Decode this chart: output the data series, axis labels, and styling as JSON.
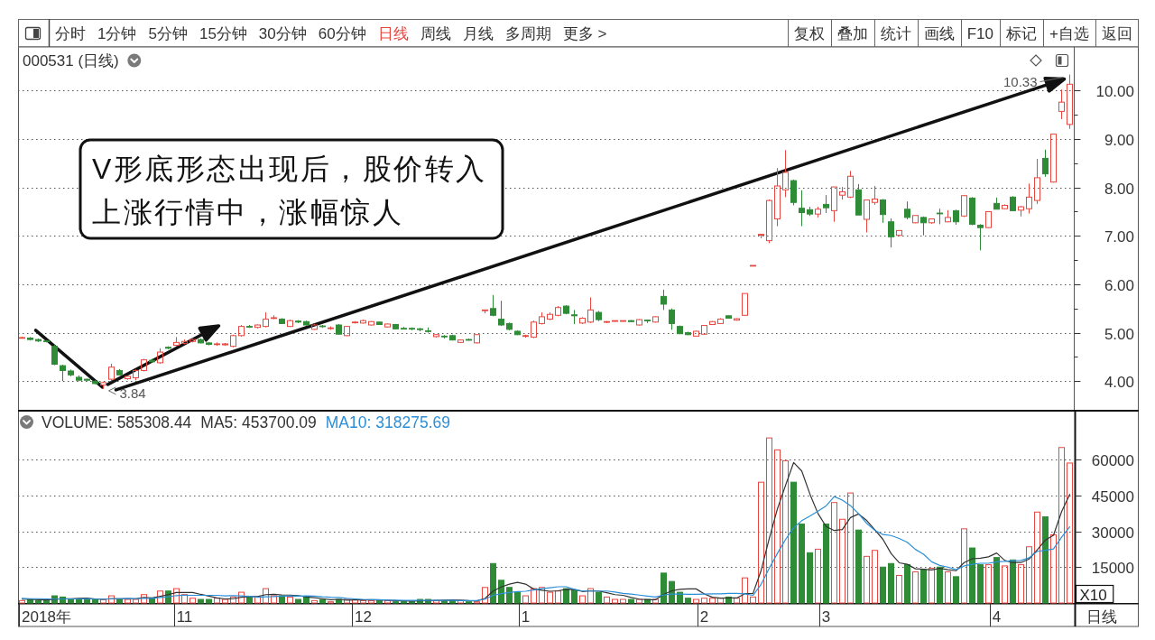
{
  "chart_data": [
    {
      "type": "other",
      "annotations": [
        "分时",
        "1分钟",
        "5分钟",
        "15分钟",
        "30分钟",
        "60分钟",
        "日线",
        "周线",
        "月线",
        "多周期",
        "更多 >"
      ],
      "colors": [
        "#333333",
        "#333333",
        "#333333",
        "#333333",
        "#333333",
        "#333333",
        "#e8473f",
        "#333333",
        "#333333",
        "#333333",
        "#333333"
      ]
    },
    {
      "type": "other",
      "annotations": [
        "复权",
        "叠加",
        "统计",
        "画线",
        "F10",
        "标记",
        "+自选",
        "返回"
      ]
    },
    {
      "type": "candlestick",
      "title": "000531 (日线)",
      "categories": [
        null,
        null,
        null,
        null,
        null,
        null,
        null,
        null,
        null,
        null,
        null,
        null,
        null,
        null,
        null,
        null,
        null,
        null,
        null,
        null,
        null,
        null,
        null,
        null,
        null,
        null,
        null,
        null,
        null,
        null,
        null,
        null,
        null,
        null,
        null,
        null,
        null,
        null,
        null,
        null,
        null,
        null,
        null,
        null,
        null,
        null,
        null,
        null,
        null,
        null,
        null,
        null,
        null,
        null,
        null,
        null,
        null,
        null,
        null,
        null,
        null,
        null,
        null,
        null,
        null,
        null,
        null,
        null,
        null,
        null,
        null,
        null,
        null,
        null,
        null,
        null,
        null,
        null,
        null,
        null,
        null,
        null,
        null,
        null,
        null,
        null,
        null,
        null,
        null,
        null,
        null,
        null,
        null,
        null,
        null,
        null,
        null,
        null,
        null,
        null,
        null,
        null,
        null,
        null,
        null,
        null,
        null,
        null,
        null,
        null,
        null,
        null,
        null,
        null,
        null,
        null,
        null,
        null,
        null,
        null,
        null,
        null,
        null,
        null,
        null,
        null,
        null,
        null,
        null,
        null
      ],
      "ohlc": [
        [
          4.89,
          4.92,
          4.88,
          4.9
        ],
        [
          4.89,
          4.91,
          4.84,
          4.86
        ],
        [
          4.86,
          4.88,
          4.81,
          4.83
        ],
        [
          4.83,
          4.85,
          4.8,
          4.82
        ],
        [
          4.72,
          4.75,
          4.33,
          4.35
        ],
        [
          4.32,
          4.34,
          4.0,
          4.22
        ],
        [
          4.21,
          4.24,
          4.1,
          4.13
        ],
        [
          4.08,
          4.12,
          4.0,
          4.02
        ],
        [
          4.04,
          4.05,
          4.0,
          4.02
        ],
        [
          4.0,
          4.02,
          3.94,
          3.95
        ],
        [
          3.92,
          3.99,
          3.84,
          3.97
        ],
        [
          4.04,
          4.36,
          4.0,
          4.29
        ],
        [
          4.22,
          4.25,
          4.12,
          4.13
        ],
        [
          4.05,
          4.12,
          4.03,
          4.1
        ],
        [
          4.07,
          4.24,
          4.02,
          4.22
        ],
        [
          4.22,
          4.46,
          4.2,
          4.44
        ],
        [
          4.43,
          4.46,
          4.38,
          4.4
        ],
        [
          4.38,
          4.68,
          4.36,
          4.6
        ],
        [
          4.7,
          4.72,
          4.66,
          4.68
        ],
        [
          4.74,
          4.91,
          4.72,
          4.8
        ],
        [
          4.78,
          4.86,
          4.76,
          4.82
        ],
        [
          4.82,
          4.88,
          4.8,
          4.86
        ],
        [
          4.86,
          4.88,
          4.78,
          4.79
        ],
        [
          4.79,
          4.81,
          4.74,
          4.76
        ],
        [
          4.76,
          4.8,
          4.73,
          4.77
        ],
        [
          4.75,
          4.79,
          4.73,
          4.77
        ],
        [
          4.72,
          4.96,
          4.7,
          4.94
        ],
        [
          4.94,
          5.16,
          4.92,
          5.13
        ],
        [
          5.13,
          5.16,
          5.1,
          5.12
        ],
        [
          5.11,
          5.17,
          5.09,
          5.16
        ],
        [
          5.13,
          5.42,
          5.11,
          5.28
        ],
        [
          5.3,
          5.36,
          5.28,
          5.31
        ],
        [
          5.28,
          5.3,
          5.18,
          5.19
        ],
        [
          5.13,
          5.27,
          5.12,
          5.25
        ],
        [
          5.24,
          5.26,
          5.2,
          5.22
        ],
        [
          5.23,
          5.25,
          5.15,
          5.16
        ],
        [
          5.07,
          5.18,
          5.06,
          5.16
        ],
        [
          5.14,
          5.16,
          5.1,
          5.13
        ],
        [
          5.09,
          5.13,
          5.06,
          5.1
        ],
        [
          5.16,
          5.18,
          4.96,
          4.97
        ],
        [
          4.94,
          5.14,
          4.93,
          5.13
        ],
        [
          5.21,
          5.24,
          5.19,
          5.22
        ],
        [
          5.2,
          5.27,
          5.19,
          5.25
        ],
        [
          5.16,
          5.24,
          5.15,
          5.23
        ],
        [
          5.22,
          5.23,
          5.16,
          5.17
        ],
        [
          5.12,
          5.19,
          5.11,
          5.18
        ],
        [
          5.17,
          5.18,
          5.07,
          5.08
        ],
        [
          5.09,
          5.12,
          5.07,
          5.08
        ],
        [
          5.09,
          5.11,
          5.05,
          5.08
        ],
        [
          5.08,
          5.1,
          5.03,
          5.07
        ],
        [
          5.04,
          5.11,
          5.0,
          5.03
        ],
        [
          4.92,
          4.97,
          4.9,
          4.96
        ],
        [
          4.93,
          4.95,
          4.88,
          4.92
        ],
        [
          4.94,
          4.96,
          4.84,
          4.85
        ],
        [
          4.8,
          4.86,
          4.79,
          4.85
        ],
        [
          4.86,
          4.88,
          4.84,
          4.85
        ],
        [
          4.79,
          4.97,
          4.78,
          4.96
        ],
        [
          5.46,
          5.47,
          5.4,
          5.47
        ],
        [
          5.5,
          5.78,
          5.34,
          5.36
        ],
        [
          5.28,
          5.66,
          5.14,
          5.16
        ],
        [
          5.19,
          5.21,
          5.05,
          5.07
        ],
        [
          5.03,
          5.05,
          4.95,
          4.96
        ],
        [
          4.94,
          4.96,
          4.9,
          4.94
        ],
        [
          4.91,
          5.25,
          4.89,
          5.22
        ],
        [
          5.19,
          5.42,
          5.17,
          5.33
        ],
        [
          5.28,
          5.42,
          5.26,
          5.38
        ],
        [
          5.36,
          5.55,
          5.34,
          5.52
        ],
        [
          5.55,
          5.57,
          5.38,
          5.4
        ],
        [
          5.37,
          5.47,
          5.18,
          5.35
        ],
        [
          5.2,
          5.32,
          5.18,
          5.3
        ],
        [
          5.22,
          5.73,
          5.2,
          5.47
        ],
        [
          5.42,
          5.45,
          5.24,
          5.27
        ],
        [
          5.22,
          5.24,
          5.2,
          5.23
        ],
        [
          5.24,
          5.25,
          5.23,
          5.25
        ],
        [
          5.24,
          5.25,
          5.23,
          5.25
        ],
        [
          5.25,
          5.26,
          5.22,
          5.23
        ],
        [
          5.16,
          5.28,
          5.15,
          5.27
        ],
        [
          5.26,
          5.27,
          5.2,
          5.25
        ],
        [
          5.22,
          5.34,
          5.21,
          5.33
        ],
        [
          5.75,
          5.89,
          5.47,
          5.59
        ],
        [
          5.47,
          5.5,
          5.06,
          5.19
        ],
        [
          5.13,
          5.15,
          4.97,
          4.98
        ],
        [
          5.0,
          5.02,
          4.95,
          4.96
        ],
        [
          4.93,
          5.04,
          4.92,
          5.03
        ],
        [
          4.97,
          5.16,
          4.96,
          5.15
        ],
        [
          5.17,
          5.24,
          5.16,
          5.23
        ],
        [
          5.19,
          5.3,
          5.18,
          5.28
        ],
        [
          5.35,
          5.36,
          5.29,
          5.3
        ],
        [
          5.26,
          5.3,
          5.25,
          5.29
        ],
        [
          5.36,
          5.81,
          5.35,
          5.81
        ],
        [
          6.39,
          6.39,
          6.39,
          6.39
        ],
        [
          7.03,
          7.03,
          6.95,
          7.03
        ],
        [
          6.9,
          7.75,
          6.85,
          7.73
        ],
        [
          7.35,
          8.4,
          7.2,
          8.03
        ],
        [
          7.95,
          8.77,
          7.8,
          8.31
        ],
        [
          8.14,
          8.16,
          7.63,
          7.69
        ],
        [
          7.57,
          7.94,
          7.2,
          7.48
        ],
        [
          7.54,
          7.6,
          7.41,
          7.45
        ],
        [
          7.45,
          7.6,
          7.38,
          7.55
        ],
        [
          7.65,
          7.84,
          7.47,
          7.58
        ],
        [
          7.52,
          8.01,
          7.29,
          8.01
        ],
        [
          7.84,
          8.01,
          7.75,
          7.91
        ],
        [
          7.8,
          8.34,
          7.78,
          8.23
        ],
        [
          7.95,
          8.07,
          7.43,
          7.43
        ],
        [
          7.34,
          7.74,
          7.07,
          7.74
        ],
        [
          7.69,
          8.03,
          7.64,
          7.76
        ],
        [
          7.74,
          7.76,
          7.27,
          7.44
        ],
        [
          7.29,
          7.36,
          6.76,
          6.98
        ],
        [
          7.01,
          7.11,
          7.0,
          7.11
        ],
        [
          7.55,
          7.71,
          7.34,
          7.38
        ],
        [
          7.27,
          7.42,
          7.26,
          7.42
        ],
        [
          7.38,
          7.4,
          7.01,
          7.27
        ],
        [
          7.27,
          7.36,
          7.25,
          7.35
        ],
        [
          7.47,
          7.56,
          7.24,
          7.46
        ],
        [
          7.29,
          7.53,
          7.28,
          7.38
        ],
        [
          7.52,
          7.54,
          7.23,
          7.29
        ],
        [
          7.41,
          7.84,
          7.39,
          7.83
        ],
        [
          7.78,
          7.8,
          7.22,
          7.24
        ],
        [
          7.22,
          7.24,
          6.7,
          7.17
        ],
        [
          7.17,
          7.5,
          7.16,
          7.5
        ],
        [
          7.67,
          7.79,
          7.55,
          7.55
        ],
        [
          7.56,
          7.65,
          7.55,
          7.63
        ],
        [
          7.8,
          7.82,
          7.52,
          7.52
        ],
        [
          7.53,
          7.62,
          7.4,
          7.6
        ],
        [
          7.56,
          8.08,
          7.46,
          7.8
        ],
        [
          7.73,
          8.59,
          7.66,
          8.2
        ],
        [
          8.6,
          8.78,
          8.22,
          8.28
        ],
        [
          8.11,
          9.1,
          8.1,
          9.1
        ],
        [
          9.57,
          10.02,
          9.41,
          9.76
        ],
        [
          9.3,
          10.33,
          9.21,
          10.13
        ]
      ],
      "colors": [
        "#e8473f",
        "#2e8b36",
        "#2e8b36",
        "#2e8b36",
        "#2e8b36",
        "#2e8b36",
        "#2e8b36",
        "#2e8b36",
        "#2e8b36",
        "#2e8b36",
        "#e8473f",
        "#e8473f",
        "#2e8b36",
        "#e8473f",
        "#e8473f",
        "#e8473f",
        "#2e8b36",
        "#e8473f",
        "#2e8b36",
        "#e8473f",
        "#e8473f",
        "#e8473f",
        "#2e8b36",
        "#2e8b36",
        "#e8473f",
        "#e8473f",
        "#e8473f",
        "#e8473f",
        "#2e8b36",
        "#e8473f",
        "#e8473f",
        "#e8473f",
        "#2e8b36",
        "#e8473f",
        "#2e8b36",
        "#2e8b36",
        "#e8473f",
        "#2e8b36",
        "#e8473f",
        "#2e8b36",
        "#e8473f",
        "#e8473f",
        "#e8473f",
        "#e8473f",
        "#2e8b36",
        "#e8473f",
        "#2e8b36",
        "#2e8b36",
        "#2e8b36",
        "#2e8b36",
        "#2e8b36",
        "#e8473f",
        "#2e8b36",
        "#2e8b36",
        "#e8473f",
        "#2e8b36",
        "#e8473f",
        "#e8473f",
        "#2e8b36",
        "#2e8b36",
        "#2e8b36",
        "#2e8b36",
        "#e8473f",
        "#e8473f",
        "#e8473f",
        "#e8473f",
        "#e8473f",
        "#2e8b36",
        "#2e8b36",
        "#e8473f",
        "#e8473f",
        "#2e8b36",
        "#e8473f",
        "#e8473f",
        "#e8473f",
        "#2e8b36",
        "#e8473f",
        "#2e8b36",
        "#e8473f",
        "#2e8b36",
        "#2e8b36",
        "#2e8b36",
        "#2e8b36",
        "#e8473f",
        "#e8473f",
        "#e8473f",
        "#e8473f",
        "#2e8b36",
        "#e8473f",
        "#e8473f",
        "#e8473f",
        "#e8473f",
        "#e8473f",
        "#e8473f",
        "#e8473f",
        "#2e8b36",
        "#2e8b36",
        "#2e8b36",
        "#e8473f",
        "#2e8b36",
        "#e8473f",
        "#e8473f",
        "#e8473f",
        "#2e8b36",
        "#e8473f",
        "#e8473f",
        "#2e8b36",
        "#2e8b36",
        "#e8473f",
        "#2e8b36",
        "#e8473f",
        "#2e8b36",
        "#e8473f",
        "#2e8b36",
        "#e8473f",
        "#2e8b36",
        "#e8473f",
        "#2e8b36",
        "#2e8b36",
        "#e8473f",
        "#2e8b36",
        "#e8473f",
        "#2e8b36",
        "#e8473f",
        "#e8473f",
        "#e8473f",
        "#2e8b36",
        "#e8473f",
        "#e8473f",
        "#e8473f"
      ],
      "ylim": [
        3.39,
        10.9
      ],
      "yticks": [
        {
          "value": 4,
          "label": "4.00"
        },
        {
          "value": 4.5,
          "label": null
        },
        {
          "value": 5,
          "label": "5.00"
        },
        {
          "value": 5.5,
          "label": null
        },
        {
          "value": 6,
          "label": "6.00"
        },
        {
          "value": 6.5,
          "label": null
        },
        {
          "value": 7,
          "label": "7.00"
        },
        {
          "value": 7.5,
          "label": null
        },
        {
          "value": 8,
          "label": "8.00"
        },
        {
          "value": 8.5,
          "label": null
        },
        {
          "value": 9,
          "label": "9.00"
        },
        {
          "value": 9.5,
          "label": null
        },
        {
          "value": 10,
          "label": "10.00"
        }
      ],
      "grid": "y",
      "tick_labels": "y",
      "annotations": [
        "V形底形态出现后，股价转入上涨行情中，涨幅惊人",
        "3.84",
        "10.33"
      ]
    },
    {
      "type": "bar",
      "title": "VOLUME: 585308.44",
      "categories": [
        null,
        null,
        null,
        "2018年",
        null,
        null,
        null,
        null,
        null,
        null,
        null,
        null,
        null,
        null,
        null,
        null,
        null,
        null,
        null,
        null,
        "11",
        null,
        null,
        null,
        null,
        null,
        null,
        null,
        null,
        null,
        null,
        null,
        null,
        null,
        null,
        null,
        null,
        null,
        null,
        null,
        null,
        null,
        "12",
        null,
        null,
        null,
        null,
        null,
        null,
        null,
        null,
        null,
        null,
        null,
        null,
        null,
        null,
        null,
        null,
        null,
        null,
        null,
        "1",
        null,
        null,
        null,
        null,
        null,
        null,
        null,
        null,
        null,
        null,
        null,
        null,
        null,
        null,
        null,
        null,
        null,
        null,
        null,
        null,
        null,
        "2",
        null,
        null,
        null,
        null,
        null,
        null,
        null,
        null,
        null,
        null,
        null,
        null,
        null,
        null,
        "3",
        null,
        null,
        null,
        null,
        null,
        null,
        null,
        null,
        null,
        null,
        null,
        null,
        null,
        null,
        null,
        null,
        null,
        null,
        null,
        null,
        "4",
        null,
        null,
        null,
        null,
        null,
        null,
        null,
        null,
        null
      ],
      "series": [
        {
          "type": "bar",
          "values": [
            1000,
            1500,
            1000,
            1000,
            3000,
            2500,
            1500,
            1500,
            1500,
            1500,
            1500,
            3000,
            1500,
            1500,
            1500,
            3500,
            2000,
            5000,
            5000,
            6000,
            3500,
            2000,
            1500,
            1500,
            2000,
            1500,
            2500,
            4500,
            2500,
            2500,
            6000,
            3000,
            3000,
            2500,
            1500,
            2500,
            1000,
            1500,
            500,
            1500,
            1500,
            1500,
            1000,
            1000,
            1000,
            1000,
            500,
            500,
            500,
            1500,
            1500,
            1000,
            1000,
            1000,
            1000,
            500,
            500,
            6500,
            16500,
            9500,
            6500,
            4500,
            3000,
            6000,
            6500,
            4500,
            5000,
            6000,
            5500,
            3000,
            6000,
            4500,
            2500,
            1500,
            1500,
            1500,
            1500,
            1500,
            1500,
            12500,
            9000,
            4500,
            2000,
            1500,
            2000,
            2000,
            2000,
            2500,
            2000,
            10500,
            2500,
            50500,
            69000,
            64000,
            59500,
            50500,
            33000,
            21000,
            22500,
            33000,
            42000,
            35000,
            46000,
            30500,
            19500,
            22000,
            15000,
            16500,
            11500,
            16000,
            13000,
            14000,
            14500,
            15000,
            13000,
            11000,
            31000,
            23000,
            16000,
            16000,
            19000,
            15500,
            18000,
            16000,
            23500,
            38000,
            36000,
            28500,
            65000,
            58500
          ],
          "colors": [
            "#e8473f",
            "#2e8b36",
            "#2e8b36",
            "#2e8b36",
            "#2e8b36",
            "#2e8b36",
            "#2e8b36",
            "#2e8b36",
            "#2e8b36",
            "#2e8b36",
            "#e8473f",
            "#e8473f",
            "#2e8b36",
            "#e8473f",
            "#e8473f",
            "#e8473f",
            "#2e8b36",
            "#e8473f",
            "#2e8b36",
            "#e8473f",
            "#e8473f",
            "#e8473f",
            "#2e8b36",
            "#2e8b36",
            "#e8473f",
            "#e8473f",
            "#e8473f",
            "#e8473f",
            "#2e8b36",
            "#e8473f",
            "#e8473f",
            "#e8473f",
            "#2e8b36",
            "#e8473f",
            "#2e8b36",
            "#2e8b36",
            "#e8473f",
            "#2e8b36",
            "#e8473f",
            "#2e8b36",
            "#e8473f",
            "#e8473f",
            "#e8473f",
            "#e8473f",
            "#2e8b36",
            "#e8473f",
            "#2e8b36",
            "#2e8b36",
            "#2e8b36",
            "#2e8b36",
            "#2e8b36",
            "#e8473f",
            "#2e8b36",
            "#2e8b36",
            "#e8473f",
            "#2e8b36",
            "#e8473f",
            "#e8473f",
            "#2e8b36",
            "#2e8b36",
            "#2e8b36",
            "#2e8b36",
            "#e8473f",
            "#e8473f",
            "#e8473f",
            "#e8473f",
            "#e8473f",
            "#2e8b36",
            "#2e8b36",
            "#e8473f",
            "#e8473f",
            "#2e8b36",
            "#e8473f",
            "#e8473f",
            "#e8473f",
            "#2e8b36",
            "#e8473f",
            "#2e8b36",
            "#e8473f",
            "#2e8b36",
            "#2e8b36",
            "#2e8b36",
            "#2e8b36",
            "#e8473f",
            "#e8473f",
            "#e8473f",
            "#e8473f",
            "#2e8b36",
            "#e8473f",
            "#e8473f",
            "#e8473f",
            "#e8473f",
            "#e8473f",
            "#e8473f",
            "#e8473f",
            "#2e8b36",
            "#2e8b36",
            "#2e8b36",
            "#e8473f",
            "#2e8b36",
            "#e8473f",
            "#e8473f",
            "#e8473f",
            "#2e8b36",
            "#e8473f",
            "#e8473f",
            "#2e8b36",
            "#2e8b36",
            "#e8473f",
            "#2e8b36",
            "#e8473f",
            "#2e8b36",
            "#e8473f",
            "#2e8b36",
            "#e8473f",
            "#2e8b36",
            "#e8473f",
            "#2e8b36",
            "#2e8b36",
            "#e8473f",
            "#2e8b36",
            "#e8473f",
            "#2e8b36",
            "#e8473f",
            "#e8473f",
            "#e8473f",
            "#2e8b36",
            "#e8473f",
            "#e8473f",
            "#e8473f"
          ]
        },
        {
          "type": "line",
          "name": "MA5: 453700.09",
          "color": "#333333",
          "values": [
            1600,
            1500,
            1400,
            1300,
            1500,
            1800,
            1800,
            1900,
            2000,
            1700,
            1500,
            1800,
            1800,
            1800,
            1800,
            2300,
            2100,
            2800,
            3500,
            4400,
            4400,
            4400,
            3600,
            2900,
            2100,
            1700,
            1800,
            2400,
            2700,
            2700,
            3500,
            3600,
            3400,
            3300,
            3100,
            2500,
            2200,
            1800,
            1400,
            1500,
            1200,
            1300,
            1300,
            1400,
            1300,
            1200,
            1000,
            900,
            800,
            900,
            1000,
            1100,
            1200,
            1300,
            1200,
            1000,
            900,
            1900,
            5000,
            6700,
            7900,
            8600,
            7900,
            5800,
            5300,
            4900,
            5100,
            5700,
            5600,
            4800,
            5100,
            5000,
            4300,
            3500,
            3200,
            2300,
            1600,
            1400,
            1400,
            3600,
            5100,
            5700,
            5900,
            5900,
            3800,
            2400,
            2000,
            2100,
            2100,
            3900,
            4000,
            13600,
            26900,
            39300,
            49100,
            58700,
            55200,
            45600,
            37400,
            32000,
            30300,
            30700,
            35700,
            37200,
            34500,
            30600,
            26600,
            20700,
            16800,
            16200,
            14300,
            14100,
            13800,
            14500,
            13900,
            13500,
            16900,
            18500,
            18700,
            19300,
            20900,
            17800,
            16900,
            16900,
            18400,
            22200,
            26300,
            28300,
            38200,
            45400
          ]
        },
        {
          "type": "line",
          "name": "MA10: 318275.69",
          "color": "#2b8fd8",
          "values": [
            1900,
            1800,
            1800,
            1700,
            1600,
            1700,
            1700,
            1700,
            1800,
            1600,
            1600,
            1800,
            1800,
            1900,
            1800,
            1900,
            1900,
            2300,
            2600,
            3100,
            3300,
            3200,
            3200,
            3200,
            3200,
            3000,
            3100,
            3000,
            2800,
            2400,
            2600,
            2700,
            2900,
            3000,
            2900,
            3000,
            2900,
            2600,
            2400,
            2300,
            1900,
            1700,
            1500,
            1400,
            1400,
            1200,
            1200,
            1100,
            1100,
            1100,
            1100,
            1100,
            1100,
            1100,
            1000,
            1000,
            1000,
            1600,
            3200,
            3900,
            4400,
            4800,
            4900,
            5400,
            6000,
            6400,
            6800,
            6800,
            5700,
            5000,
            5000,
            5000,
            5000,
            4600,
            4000,
            3700,
            3300,
            2900,
            2500,
            3400,
            3700,
            3700,
            3600,
            3600,
            3700,
            3800,
            3800,
            4000,
            4000,
            3800,
            3200,
            7800,
            14500,
            20700,
            26500,
            31400,
            34400,
            36300,
            38400,
            40600,
            44500,
            43000,
            40700,
            37300,
            33300,
            30400,
            28600,
            28200,
            27000,
            25400,
            22400,
            20400,
            17200,
            15700,
            15000,
            13900,
            15500,
            16200,
            16600,
            16600,
            17200,
            17400,
            17700,
            17800,
            18900,
            21600,
            22000,
            22600,
            27500,
            31800
          ]
        }
      ],
      "ylim": [
        0,
        80000
      ],
      "yticks": [
        15000,
        30000,
        45000,
        60000
      ],
      "ylabel": "X10",
      "grid": "y",
      "legend": "top left",
      "annotations": [
        "日线"
      ]
    }
  ]
}
